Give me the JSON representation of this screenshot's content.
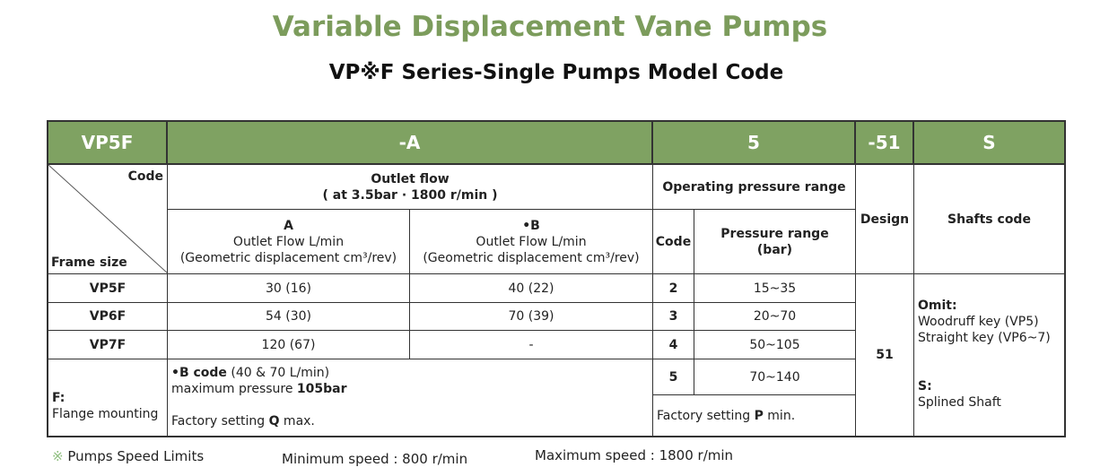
{
  "title": "Variable Displacement Vane Pumps",
  "subtitle": "VP※F Series-Single Pumps Model Code",
  "header": [
    "VP5F",
    "-A",
    "5",
    "-51",
    "S"
  ],
  "code_label": "Code",
  "frame_size_label": "Frame size",
  "outlet_flow": {
    "title": "Outlet flow",
    "condition": "( at 3.5bar · 1800 r/min )"
  },
  "col_a": {
    "code": "A",
    "line1": "Outlet Flow L/min",
    "line2": "(Geometric displacement cm³/rev)"
  },
  "col_b": {
    "code": "•B",
    "line1": "Outlet Flow L/min",
    "line2": "(Geometric displacement cm³/rev)"
  },
  "operating_pressure": "Operating pressure range",
  "pressure_code_label": "Code",
  "pressure_range_label": "Pressure range (bar)",
  "design_label": "Design",
  "shafts_label": "Shafts code",
  "rows": [
    {
      "frame": "VP5F",
      "a": "30 (16)",
      "b": "40 (22)"
    },
    {
      "frame": "VP6F",
      "a": "54 (30)",
      "b": "70 (39)"
    },
    {
      "frame": "VP7F",
      "a": "120 (67)",
      "b": "-"
    }
  ],
  "pressures": [
    {
      "code": "2",
      "range": "15~35"
    },
    {
      "code": "3",
      "range": "20~70"
    },
    {
      "code": "4",
      "range": "50~105"
    },
    {
      "code": "5",
      "range": "70~140"
    }
  ],
  "mounting": {
    "code": "F:",
    "desc": "Flange mounting"
  },
  "b_note": {
    "bold": "•B code",
    "text": " (40 & 70 L/min)",
    "line2": "maximum pressure ",
    "line2_bold": "105bar",
    "line3": "Factory setting ",
    "line3_bold": "Q",
    "line3_end": " max."
  },
  "pressure_note": {
    "text": "Factory setting ",
    "bold": "P",
    "end": " min."
  },
  "design_value": "51",
  "shafts": {
    "omit": "Omit:",
    "omit1": "Woodruff key (VP5)",
    "omit2": "Straight key (VP6~7)",
    "s": "S:",
    "s1": "Splined Shaft"
  },
  "footer": {
    "mark": "※",
    "label": "Pumps Speed Limits",
    "min": "Minimum speed : 800 r/min",
    "max": "Maximum speed : 1800 r/min"
  },
  "colors": {
    "title": "#7c9c5c",
    "header_bg": "#7fa262"
  }
}
